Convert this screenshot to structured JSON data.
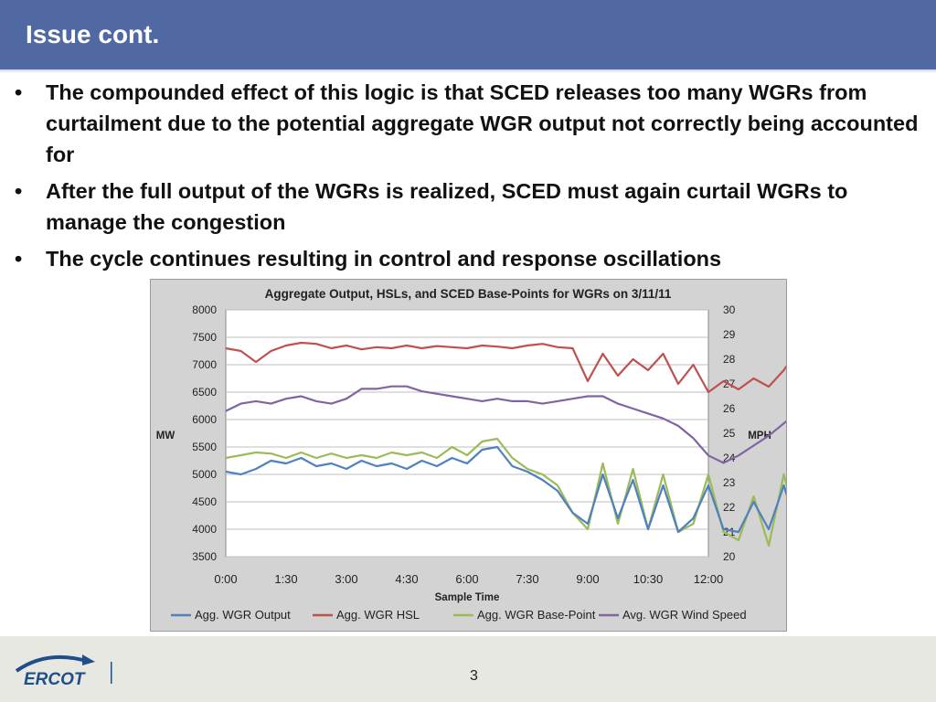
{
  "slide": {
    "title": "Issue cont.",
    "page_number": "3",
    "logo_text": "ERCOT",
    "bullets": [
      "The compounded effect of this logic is that SCED releases too many WGRs from curtailment due to the potential aggregate WGR output not correctly being accounted for",
      "After the full output of the WGRs is realized, SCED must again curtail WGRs to manage the congestion",
      "The cycle continues resulting in control and response oscillations"
    ]
  },
  "colors": {
    "header": "#5069a3",
    "output": "#4f81bd",
    "hsl": "#c0504d",
    "basepoint": "#9bbb59",
    "wind": "#8064a2"
  },
  "chart_data": {
    "type": "line",
    "title": "Aggregate Output, HSLs, and SCED Base-Points for WGRs on 3/11/11",
    "xlabel": "Sample Time",
    "ylabel": "MW",
    "y2label": "MPH",
    "x_ticks": [
      "0:00",
      "1:30",
      "3:00",
      "4:30",
      "6:00",
      "7:30",
      "9:00",
      "10:30",
      "12:00"
    ],
    "ylim": [
      3500,
      8000
    ],
    "y_ticks": [
      "3500",
      "4000",
      "4500",
      "5000",
      "5500",
      "6000",
      "6500",
      "7000",
      "7500",
      "8000"
    ],
    "y2lim": [
      20,
      30
    ],
    "y2_ticks": [
      "20",
      "21",
      "22",
      "23",
      "24",
      "25",
      "26",
      "27",
      "28",
      "29",
      "30"
    ],
    "legend_position": "bottom",
    "grid": true,
    "series": [
      {
        "name": "Agg. WGR Output",
        "axis": "left",
        "x": [
          0,
          0.25,
          0.5,
          0.75,
          1,
          1.25,
          1.5,
          1.75,
          2,
          2.25,
          2.5,
          2.75,
          3,
          3.25,
          3.5,
          3.75,
          4,
          4.25,
          4.5,
          4.75,
          5,
          5.25,
          5.5,
          5.75,
          6,
          6.25,
          6.5,
          6.75,
          7,
          7.25,
          7.5,
          7.75,
          8,
          8.25,
          8.5,
          8.75,
          9,
          9.25,
          9.5,
          9.75,
          10,
          10.25,
          10.5,
          10.75,
          11,
          11.25,
          11.5,
          11.75,
          12
        ],
        "values": [
          5050,
          5000,
          5100,
          5250,
          5200,
          5300,
          5150,
          5200,
          5100,
          5250,
          5150,
          5200,
          5100,
          5250,
          5150,
          5300,
          5200,
          5450,
          5500,
          5150,
          5050,
          4900,
          4700,
          4300,
          4100,
          5000,
          4200,
          4900,
          4000,
          4800,
          3950,
          4200,
          4800,
          4000,
          3950,
          4500,
          4000,
          4800,
          3900,
          5800,
          4100,
          4800,
          4500,
          4600,
          4800,
          4700,
          4900,
          5100,
          4900
        ]
      },
      {
        "name": "Agg. WGR HSL",
        "axis": "left",
        "x": [
          0,
          0.25,
          0.5,
          0.75,
          1,
          1.25,
          1.5,
          1.75,
          2,
          2.25,
          2.5,
          2.75,
          3,
          3.25,
          3.5,
          3.75,
          4,
          4.25,
          4.5,
          4.75,
          5,
          5.25,
          5.5,
          5.75,
          6,
          6.25,
          6.5,
          6.75,
          7,
          7.25,
          7.5,
          7.75,
          8,
          8.25,
          8.5,
          8.75,
          9,
          9.25,
          9.5,
          9.75,
          10,
          10.25,
          10.5,
          10.75,
          11,
          11.25,
          11.5,
          11.75,
          12
        ],
        "values": [
          7300,
          7250,
          7050,
          7250,
          7350,
          7400,
          7380,
          7300,
          7350,
          7280,
          7320,
          7300,
          7350,
          7300,
          7340,
          7320,
          7300,
          7350,
          7330,
          7300,
          7350,
          7380,
          7320,
          7300,
          6700,
          7200,
          6800,
          7100,
          6900,
          7200,
          6650,
          7000,
          6500,
          6700,
          6550,
          6750,
          6600,
          6900,
          7300,
          6700,
          7500,
          6900,
          7100,
          7400,
          7550,
          7500,
          7600,
          7550,
          7550
        ]
      },
      {
        "name": "Agg. WGR Base-Point",
        "axis": "left",
        "x": [
          0,
          0.25,
          0.5,
          0.75,
          1,
          1.25,
          1.5,
          1.75,
          2,
          2.25,
          2.5,
          2.75,
          3,
          3.25,
          3.5,
          3.75,
          4,
          4.25,
          4.5,
          4.75,
          5,
          5.25,
          5.5,
          5.75,
          6,
          6.25,
          6.5,
          6.75,
          7,
          7.25,
          7.5,
          7.75,
          8,
          8.25,
          8.5,
          8.75,
          9,
          9.25,
          9.5,
          9.75,
          10,
          10.25,
          10.5,
          10.75,
          11,
          11.25,
          11.5,
          11.75,
          12
        ],
        "values": [
          5300,
          5350,
          5400,
          5380,
          5300,
          5400,
          5300,
          5380,
          5300,
          5350,
          5300,
          5400,
          5350,
          5400,
          5300,
          5500,
          5350,
          5600,
          5650,
          5300,
          5100,
          5000,
          4800,
          4300,
          4000,
          5200,
          4100,
          5100,
          4000,
          5000,
          3950,
          4100,
          5000,
          3950,
          3800,
          4600,
          3700,
          5000,
          4000,
          6000,
          3900,
          5000,
          4800,
          4900,
          5000,
          4850,
          4950,
          5000,
          4900
        ]
      },
      {
        "name": "Avg. WGR Wind Speed",
        "axis": "right",
        "x": [
          0,
          0.25,
          0.5,
          0.75,
          1,
          1.25,
          1.5,
          1.75,
          2,
          2.25,
          2.5,
          2.75,
          3,
          3.25,
          3.5,
          3.75,
          4,
          4.25,
          4.5,
          4.75,
          5,
          5.25,
          5.5,
          5.75,
          6,
          6.25,
          6.5,
          6.75,
          7,
          7.25,
          7.5,
          7.75,
          8,
          8.25,
          8.5,
          8.75,
          9,
          9.25,
          9.5,
          9.75,
          10,
          10.25,
          10.5,
          10.75,
          11,
          11.25,
          11.5,
          11.75,
          12
        ],
        "values": [
          25.9,
          26.2,
          26.3,
          26.2,
          26.4,
          26.5,
          26.3,
          26.2,
          26.4,
          26.8,
          26.8,
          26.9,
          26.9,
          26.7,
          26.6,
          26.5,
          26.4,
          26.3,
          26.4,
          26.3,
          26.3,
          26.2,
          26.3,
          26.4,
          26.5,
          26.5,
          26.2,
          26.0,
          25.8,
          25.6,
          25.3,
          24.8,
          24.1,
          23.8,
          24.1,
          24.5,
          24.9,
          25.4,
          25.9,
          26.5,
          26.8,
          27.1,
          26.9,
          26.6,
          26.5,
          26.3,
          26.1,
          26.0,
          25.9
        ]
      }
    ]
  }
}
